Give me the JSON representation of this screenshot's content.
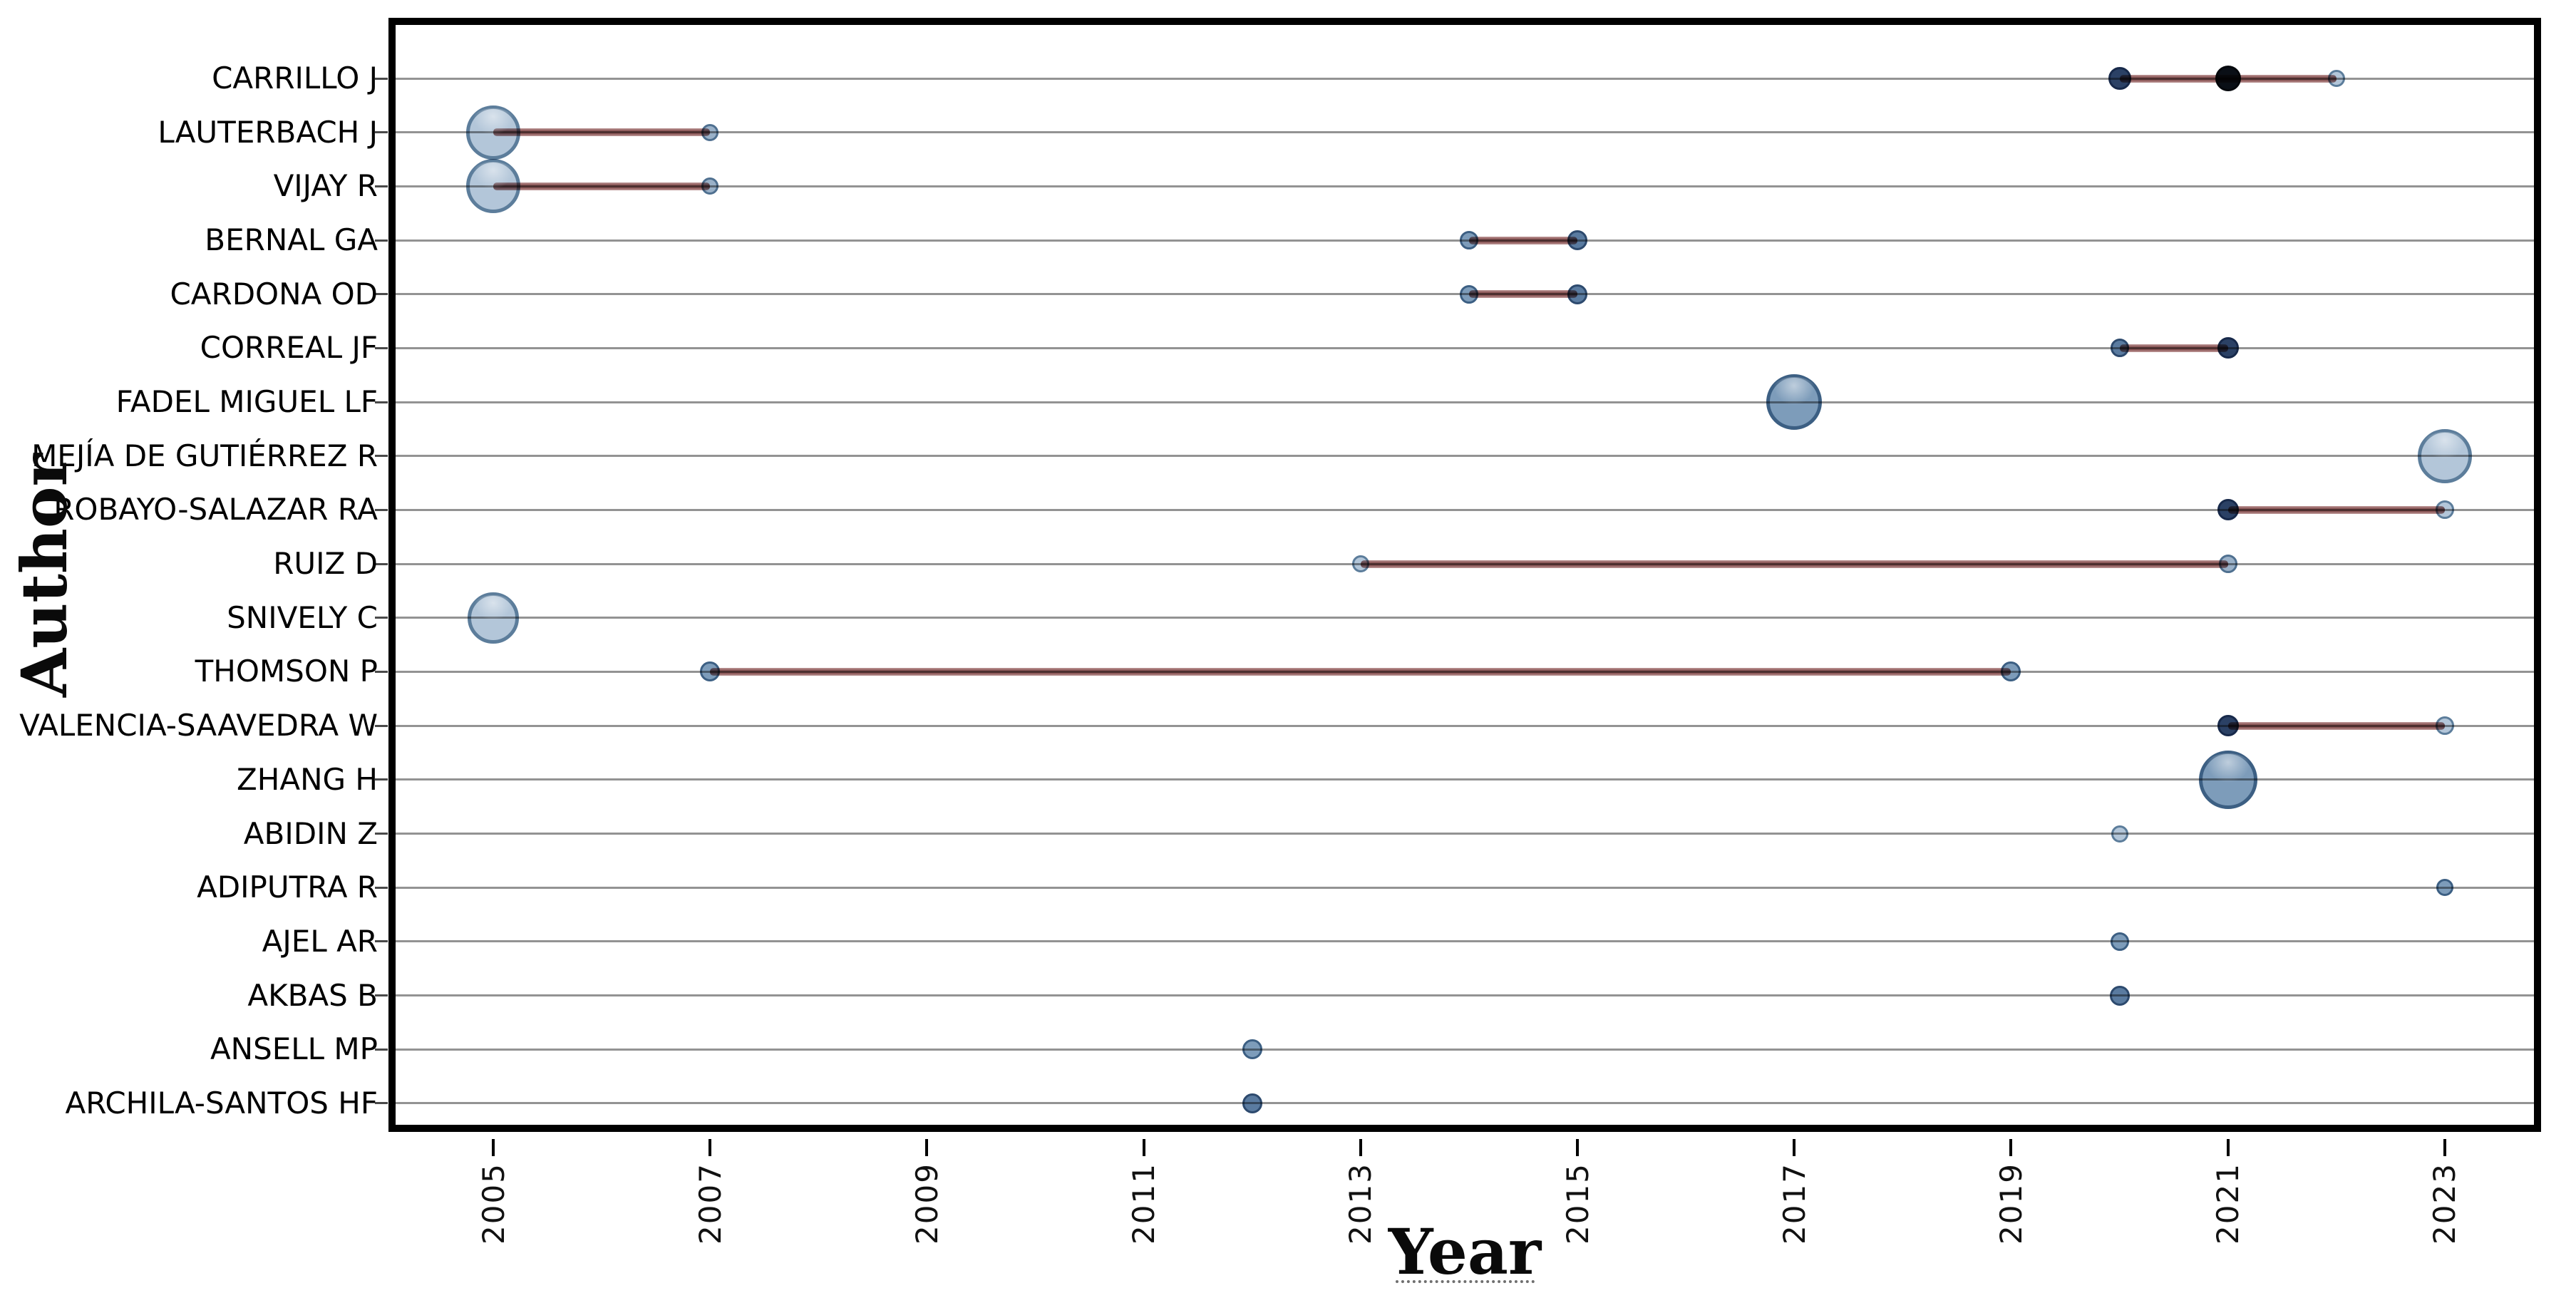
{
  "figure": {
    "xlabel": "Year",
    "ylabel": "Author"
  },
  "colors": {
    "plot_border": "#000000",
    "gridline": "#939393",
    "timeline_line": "#8f5b5b",
    "shades": {
      "light": {
        "fill": "#b3c6d9",
        "border": "#5c7d9b"
      },
      "lightmed": {
        "fill": "#9ab1c8",
        "border": "#4f7090"
      },
      "medium": {
        "fill": "#7d9cba",
        "border": "#3c5f83"
      },
      "meddark": {
        "fill": "#5a7ba0",
        "border": "#2d4a6e"
      },
      "dark": {
        "fill": "#2b4165",
        "border": "#17294a"
      },
      "black": {
        "fill": "#0a0f16",
        "border": "#05080c"
      }
    }
  },
  "chart_data": {
    "type": "scatter",
    "title": "",
    "xlabel": "Year",
    "ylabel": "Author",
    "x_ticks": [
      2005,
      2007,
      2009,
      2011,
      2013,
      2015,
      2017,
      2019,
      2021,
      2023
    ],
    "x_range": [
      2004.0,
      2023.9
    ],
    "grid": "horizontal-only",
    "legend": "none",
    "encoding_note": "bubble radius = articles produced that year; bubble darkness = citations per year; line spans first-to-last publication year",
    "authors": [
      {
        "name": "CARRILLO J",
        "span": [
          2020,
          2022
        ],
        "points": [
          {
            "year": 2020,
            "r": 16,
            "shade": "dark"
          },
          {
            "year": 2021,
            "r": 18,
            "shade": "black"
          },
          {
            "year": 2022,
            "r": 12,
            "shade": "light"
          }
        ]
      },
      {
        "name": "LAUTERBACH J",
        "span": [
          2005,
          2007
        ],
        "points": [
          {
            "year": 2005,
            "r": 38,
            "shade": "light"
          },
          {
            "year": 2007,
            "r": 12,
            "shade": "lightmed"
          }
        ]
      },
      {
        "name": "VIJAY R",
        "span": [
          2005,
          2007
        ],
        "points": [
          {
            "year": 2005,
            "r": 38,
            "shade": "light"
          },
          {
            "year": 2007,
            "r": 12,
            "shade": "lightmed"
          }
        ]
      },
      {
        "name": "BERNAL GA",
        "span": [
          2014,
          2015
        ],
        "points": [
          {
            "year": 2014,
            "r": 13,
            "shade": "medium"
          },
          {
            "year": 2015,
            "r": 14,
            "shade": "meddark"
          }
        ]
      },
      {
        "name": "CARDONA OD",
        "span": [
          2014,
          2015
        ],
        "points": [
          {
            "year": 2014,
            "r": 13,
            "shade": "medium"
          },
          {
            "year": 2015,
            "r": 14,
            "shade": "meddark"
          }
        ]
      },
      {
        "name": "CORREAL JF",
        "span": [
          2020,
          2021
        ],
        "points": [
          {
            "year": 2020,
            "r": 13,
            "shade": "meddark"
          },
          {
            "year": 2021,
            "r": 15,
            "shade": "dark"
          }
        ]
      },
      {
        "name": "FADEL MIGUEL LF",
        "span": null,
        "points": [
          {
            "year": 2017,
            "r": 39,
            "shade": "medium"
          }
        ]
      },
      {
        "name": "MEJÍA DE GUTIÉRREZ R",
        "span": null,
        "points": [
          {
            "year": 2023,
            "r": 38,
            "shade": "light"
          }
        ]
      },
      {
        "name": "ROBAYO-SALAZAR RA",
        "span": [
          2021,
          2023
        ],
        "points": [
          {
            "year": 2021,
            "r": 15,
            "shade": "dark"
          },
          {
            "year": 2023,
            "r": 13,
            "shade": "light"
          }
        ]
      },
      {
        "name": "RUIZ D",
        "span": [
          2013,
          2021
        ],
        "points": [
          {
            "year": 2013,
            "r": 12,
            "shade": "light"
          },
          {
            "year": 2021,
            "r": 13,
            "shade": "lightmed"
          }
        ]
      },
      {
        "name": "SNIVELY C",
        "span": null,
        "points": [
          {
            "year": 2005,
            "r": 36,
            "shade": "light"
          }
        ]
      },
      {
        "name": "THOMSON P",
        "span": [
          2007,
          2019
        ],
        "points": [
          {
            "year": 2007,
            "r": 14,
            "shade": "medium"
          },
          {
            "year": 2019,
            "r": 14,
            "shade": "medium"
          }
        ]
      },
      {
        "name": "VALENCIA-SAAVEDRA W",
        "span": [
          2021,
          2023
        ],
        "points": [
          {
            "year": 2021,
            "r": 15,
            "shade": "dark"
          },
          {
            "year": 2023,
            "r": 13,
            "shade": "light"
          }
        ]
      },
      {
        "name": "ZHANG H",
        "span": null,
        "points": [
          {
            "year": 2021,
            "r": 41,
            "shade": "medium"
          }
        ]
      },
      {
        "name": "ABIDIN Z",
        "span": null,
        "points": [
          {
            "year": 2020,
            "r": 12,
            "shade": "light"
          }
        ]
      },
      {
        "name": "ADIPUTRA R",
        "span": null,
        "points": [
          {
            "year": 2023,
            "r": 12,
            "shade": "medium"
          }
        ]
      },
      {
        "name": "AJEL AR",
        "span": null,
        "points": [
          {
            "year": 2020,
            "r": 13,
            "shade": "medium"
          }
        ]
      },
      {
        "name": "AKBAS B",
        "span": null,
        "points": [
          {
            "year": 2020,
            "r": 14,
            "shade": "meddark"
          }
        ]
      },
      {
        "name": "ANSELL MP",
        "span": null,
        "points": [
          {
            "year": 2012,
            "r": 14,
            "shade": "medium"
          }
        ]
      },
      {
        "name": "ARCHILA-SANTOS HF",
        "span": null,
        "points": [
          {
            "year": 2012,
            "r": 14,
            "shade": "meddark"
          }
        ]
      }
    ]
  }
}
